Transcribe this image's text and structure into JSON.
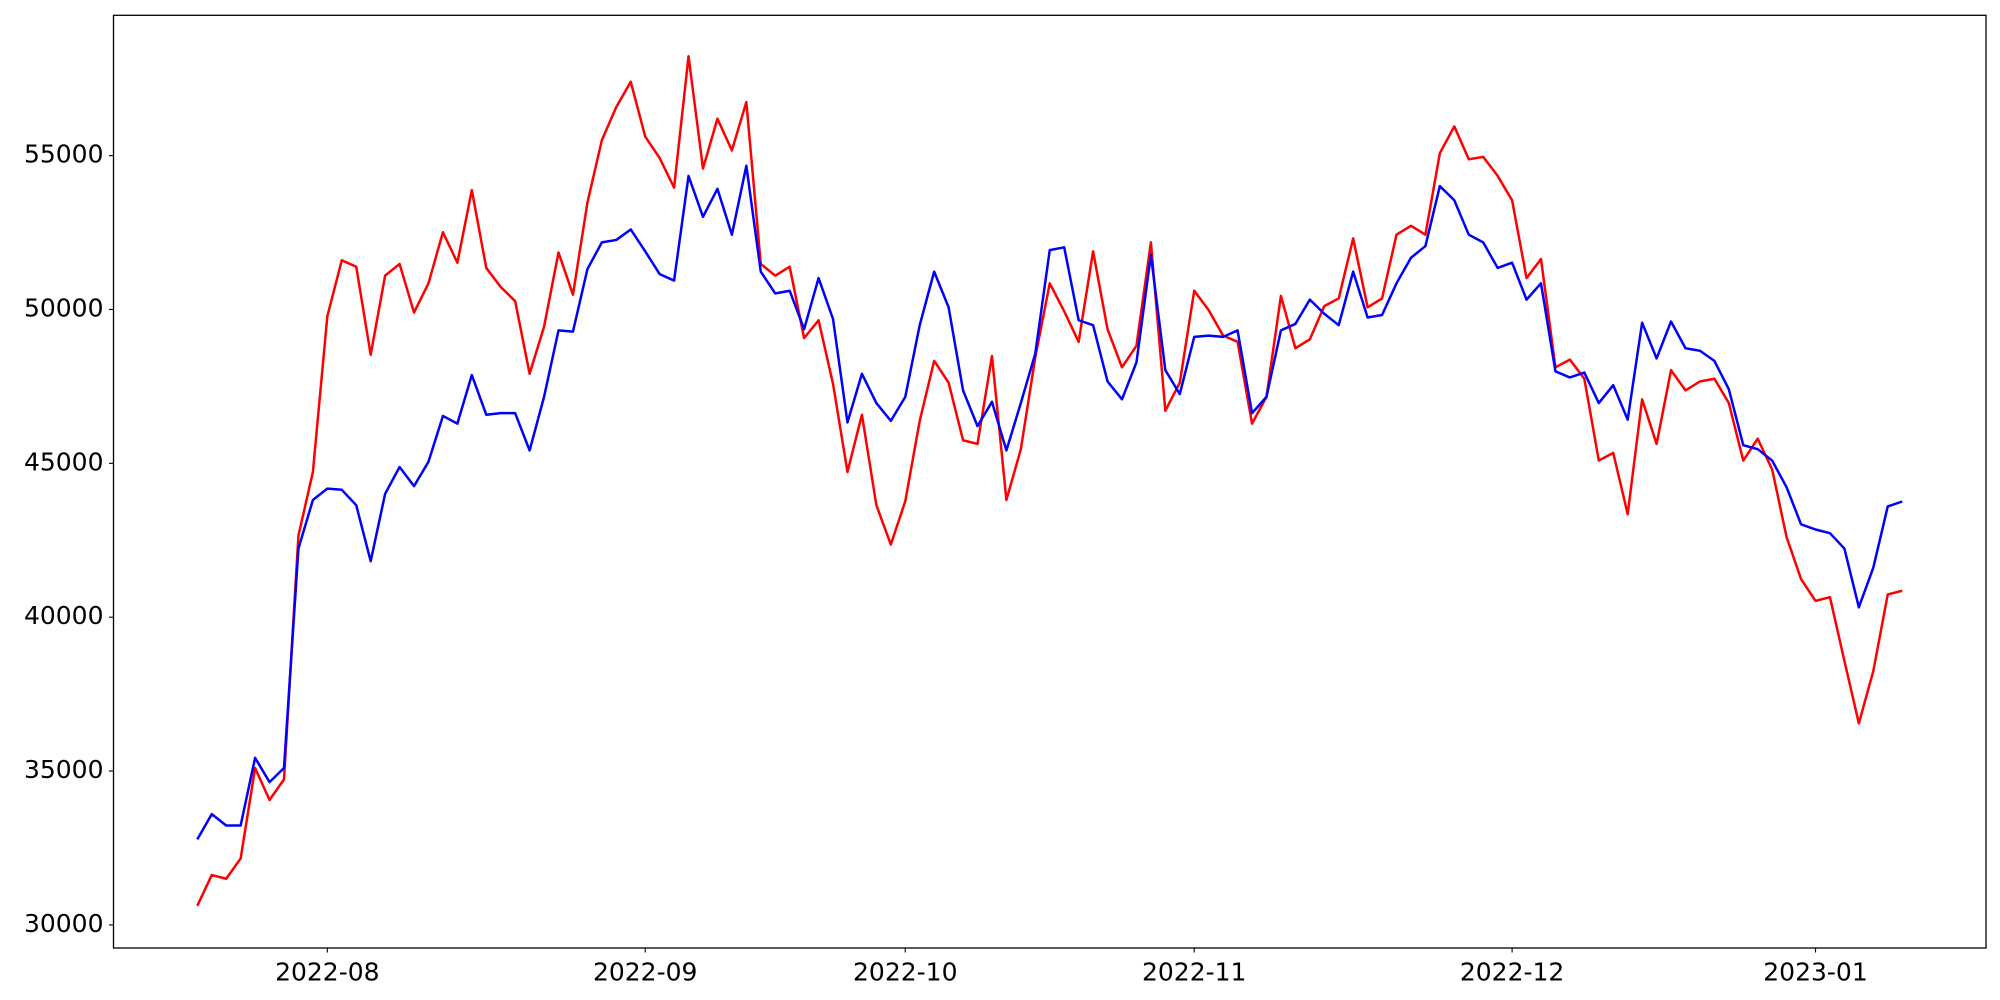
{
  "chart_data": {
    "type": "line",
    "categories": [
      null,
      null,
      null,
      null,
      null,
      null,
      null,
      null,
      null,
      "2022-08",
      null,
      null,
      null,
      null,
      null,
      null,
      null,
      null,
      null,
      null,
      null,
      null,
      null,
      null,
      null,
      null,
      null,
      null,
      null,
      null,
      null,
      "2022-09",
      null,
      null,
      null,
      null,
      null,
      null,
      null,
      null,
      null,
      null,
      null,
      null,
      null,
      null,
      null,
      null,
      null,
      "2022-10",
      null,
      null,
      null,
      null,
      null,
      null,
      null,
      null,
      null,
      null,
      null,
      null,
      null,
      null,
      null,
      null,
      null,
      null,
      null,
      "2022-11",
      null,
      null,
      null,
      null,
      null,
      null,
      null,
      null,
      null,
      null,
      null,
      null,
      null,
      null,
      null,
      null,
      null,
      null,
      null,
      null,
      null,
      "2022-12",
      null,
      null,
      null,
      null,
      null,
      null,
      null,
      null,
      null,
      null,
      null,
      null,
      null,
      null,
      null,
      null,
      null,
      null,
      null,
      null,
      "2023-01",
      null,
      null,
      null,
      null,
      null,
      null
    ],
    "series": [
      {
        "color": "#ff0000",
        "values": [
          30620,
          31620,
          31500,
          32160,
          35100,
          34060,
          34730,
          42650,
          44720,
          49780,
          51600,
          51390,
          48530,
          51100,
          51480,
          49900,
          50850,
          52510,
          51520,
          53880,
          51350,
          50730,
          50270,
          47910,
          49440,
          51850,
          50480,
          53470,
          55500,
          56580,
          57400,
          55620,
          54920,
          53960,
          58230,
          54580,
          56200,
          55170,
          56740,
          51480,
          51100,
          51390,
          49070,
          49650,
          47580,
          44720,
          46580,
          43640,
          42360,
          43770,
          46380,
          48330,
          47620,
          45750,
          45630,
          48490,
          43810,
          45460,
          48450,
          50850,
          49940,
          48950,
          51890,
          49360,
          48120,
          48820,
          52180,
          46710,
          47620,
          50610,
          49980,
          49150,
          48950,
          46290,
          47160,
          50440,
          48740,
          49030,
          50110,
          50360,
          52310,
          50070,
          50360,
          52430,
          52720,
          52430,
          55080,
          55950,
          54880,
          54960,
          54340,
          53550,
          51020,
          51640,
          48120,
          48370,
          47750,
          45090,
          45340,
          43350,
          47080,
          45630,
          48030,
          47370,
          47660,
          47750,
          46960,
          45090,
          45800,
          44800,
          42600,
          41240,
          40530,
          40650,
          38580,
          36550,
          38250,
          40740,
          40860
        ]
      },
      {
        "color": "#0000ff",
        "values": [
          32780,
          33600,
          33230,
          33230,
          35430,
          34640,
          35100,
          42230,
          43810,
          44180,
          44140,
          43640,
          41820,
          44010,
          44880,
          44260,
          45050,
          46540,
          46290,
          47870,
          46580,
          46630,
          46630,
          45420,
          47160,
          49320,
          49280,
          51310,
          52180,
          52260,
          52600,
          51890,
          51150,
          50940,
          54340,
          53010,
          53920,
          52430,
          54670,
          51230,
          50520,
          50610,
          49360,
          51020,
          49690,
          46330,
          47910,
          46960,
          46380,
          47160,
          49490,
          51230,
          50070,
          47370,
          46210,
          47000,
          45420,
          46960,
          48570,
          51930,
          52020,
          49650,
          49490,
          47660,
          47080,
          48280,
          51770,
          48030,
          47250,
          49110,
          49150,
          49110,
          49320,
          46630,
          47160,
          49320,
          49530,
          50320,
          49860,
          49490,
          51230,
          49740,
          49820,
          50850,
          51680,
          52060,
          54010,
          53550,
          52430,
          52180,
          51350,
          51520,
          50320,
          50850,
          47990,
          47790,
          47950,
          46960,
          47540,
          46420,
          49570,
          48410,
          49610,
          48740,
          48660,
          48330,
          47410,
          45590,
          45460,
          45090,
          44220,
          43020,
          42850,
          42730,
          42230,
          40320,
          41610,
          43600,
          43760
        ]
      }
    ],
    "ylim": [
      29250,
      59560
    ],
    "yticks": [
      30000,
      35000,
      40000,
      45000,
      50000,
      55000
    ]
  }
}
